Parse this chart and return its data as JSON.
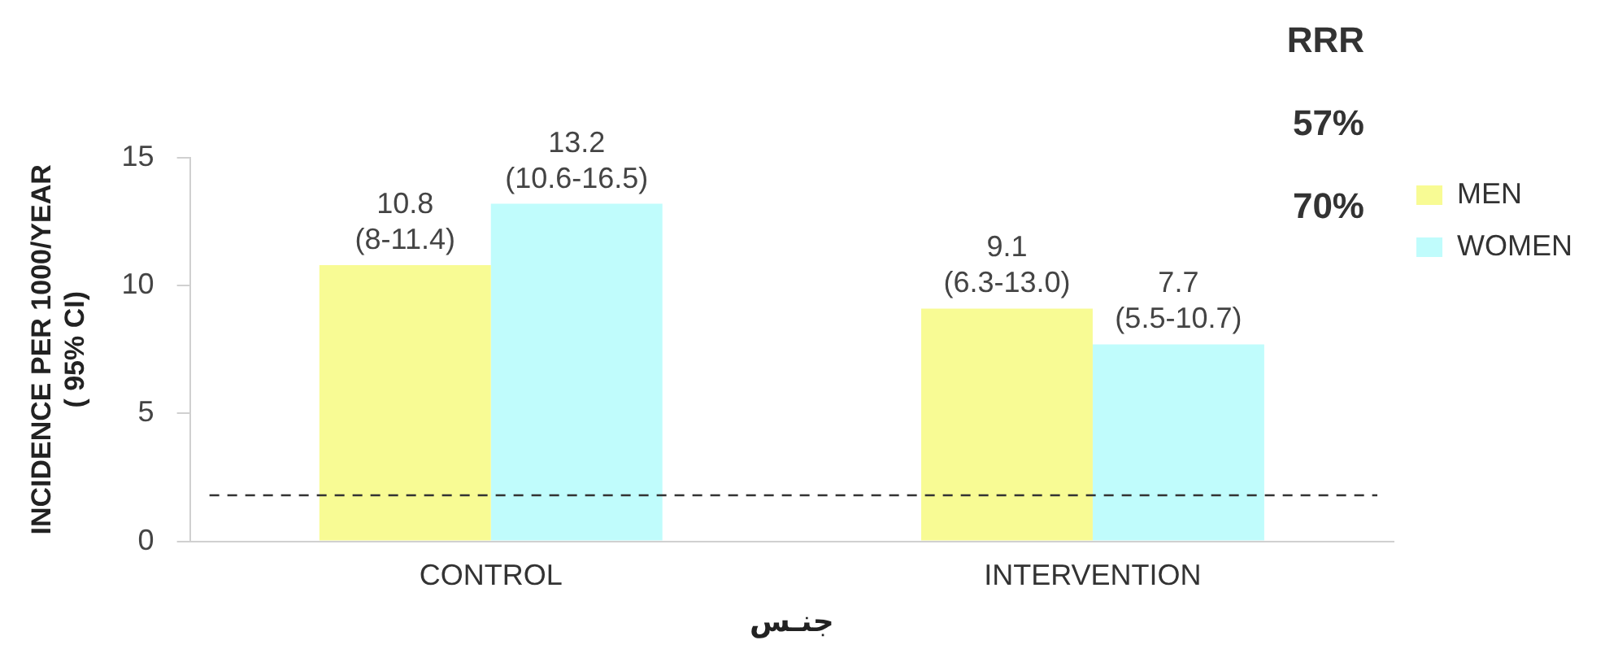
{
  "chart_data": {
    "type": "bar",
    "xlabel": "جنـس",
    "ylabel": "INCIDENCE PER 1000/YEAR\n( 95% CI)",
    "categories": [
      "CONTROL",
      "INTERVENTION"
    ],
    "series": [
      {
        "name": "MEN",
        "color": "#f8fb94",
        "values": [
          10.8,
          9.1
        ],
        "value_labels": [
          "10.8\n(8-11.4)",
          "9.1\n(6.3-13.0)"
        ]
      },
      {
        "name": "WOMEN",
        "color": "#c0fcfc",
        "values": [
          13.2,
          7.7
        ],
        "value_labels": [
          "13.2\n(10.6-16.5)",
          "7.7\n(5.5-10.7)"
        ]
      }
    ],
    "ylim": [
      0,
      15
    ],
    "yticks": [
      0,
      5,
      10,
      15
    ],
    "grid": false,
    "legend": "right",
    "ref_lines": [
      {
        "axis": "y",
        "value": 1.8,
        "color": "#333333",
        "line_style": "dashed"
      }
    ],
    "annotations": [
      "RRR",
      "57%",
      "70%"
    ]
  }
}
